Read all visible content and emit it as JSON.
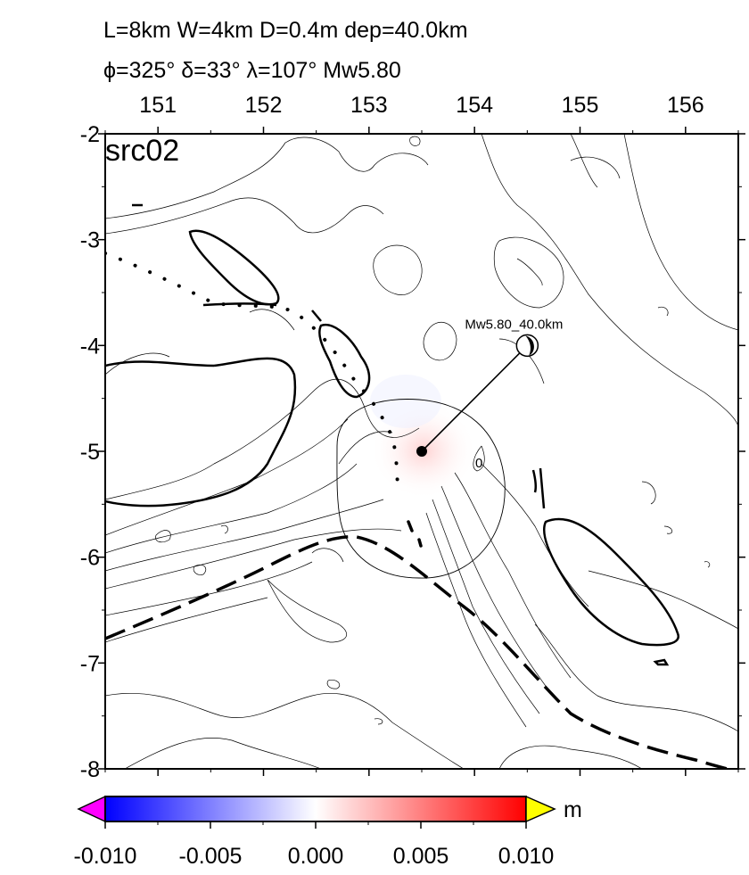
{
  "header": {
    "line1": "L=8km W=4km D=0.4m dep=40.0km",
    "line2": "ϕ=325° δ=33° λ=107° Mw5.80"
  },
  "map": {
    "panel_label": "src02",
    "lon_ticks": [
      "151",
      "152",
      "153",
      "154",
      "155",
      "156"
    ],
    "lat_ticks": [
      "-2",
      "-3",
      "-4",
      "-5",
      "-6",
      "-7",
      "-8"
    ],
    "lon_range": [
      150.5,
      156.5
    ],
    "lat_range": [
      -8,
      -2
    ],
    "source": {
      "label": "Mw5.80_40.0km",
      "epicenter_lon": 153.5,
      "epicenter_lat": -5.0,
      "beachball_lon": 154.5,
      "beachball_lat": -4.0,
      "contour_label": "0"
    }
  },
  "colorbar": {
    "unit": "m",
    "ticks": [
      "-0.010",
      "-0.005",
      "0.000",
      "0.005",
      "0.010"
    ],
    "min": -0.01,
    "max": 0.01,
    "colors": {
      "low": "#0000ff",
      "mid": "#ffffff",
      "high": "#ff0000",
      "under": "#ff00ff",
      "over": "#ffff00"
    }
  }
}
